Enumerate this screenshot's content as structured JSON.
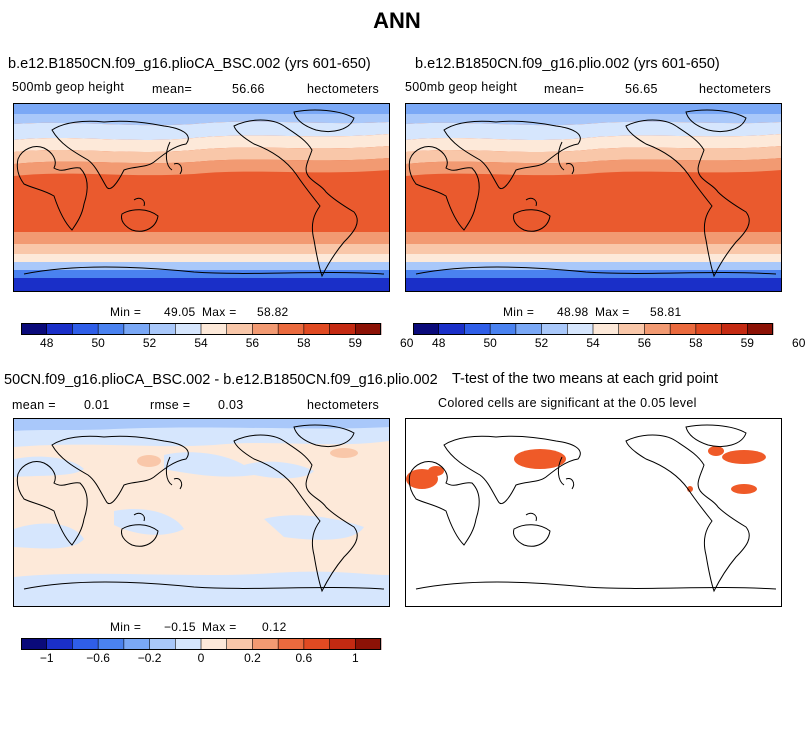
{
  "page_title": "ANN",
  "colorbar_colors": [
    "#0a0a7a",
    "#1a2fc8",
    "#2f5ee8",
    "#4a82f0",
    "#7aa8f6",
    "#a9c8fa",
    "#d6e6fd",
    "#fde9d9",
    "#f9c7a9",
    "#f29a72",
    "#ea6a3e",
    "#e04a22",
    "#c42a12",
    "#8c1206"
  ],
  "panels": {
    "top_left": {
      "title": "b.e12.B1850CN.f09_g16.plioCA_BSC.002 (yrs 601-650)",
      "variable": "500mb geop height",
      "mean_label": "mean=",
      "mean_value": "56.66",
      "units": "hectometers",
      "min_label": "Min =",
      "min_value": "49.05",
      "max_label": "Max =",
      "max_value": "58.82",
      "colorbar_ticks": [
        "48",
        "50",
        "52",
        "54",
        "56",
        "58",
        "59",
        "60"
      ]
    },
    "top_right": {
      "title": "b.e12.B1850CN.f09_g16.plio.002 (yrs 601-650)",
      "variable": "500mb geop height",
      "mean_label": "mean=",
      "mean_value": "56.65",
      "units": "hectometers",
      "min_label": "Min =",
      "min_value": "48.98",
      "max_label": "Max =",
      "max_value": "58.81",
      "colorbar_ticks": [
        "48",
        "50",
        "52",
        "54",
        "56",
        "58",
        "59",
        "60"
      ]
    },
    "bottom_left": {
      "title": "50CN.f09_g16.plioCA_BSC.002 - b.e12.B1850CN.f09_g16.plio.002",
      "mean_label": "mean =",
      "mean_value": "0.01",
      "rmse_label": "rmse =",
      "rmse_value": "0.03",
      "units": "hectometers",
      "min_label": "Min =",
      "min_value": "−0.15",
      "max_label": "Max =",
      "max_value": "0.12",
      "colorbar_ticks": [
        "−1",
        "−0.6",
        "−0.2",
        "0",
        "0.2",
        "0.6",
        "1"
      ]
    },
    "bottom_right": {
      "title": "T-test of the two means at each grid point",
      "subtitle": "Colored cells are significant at the 0.05 level"
    }
  }
}
